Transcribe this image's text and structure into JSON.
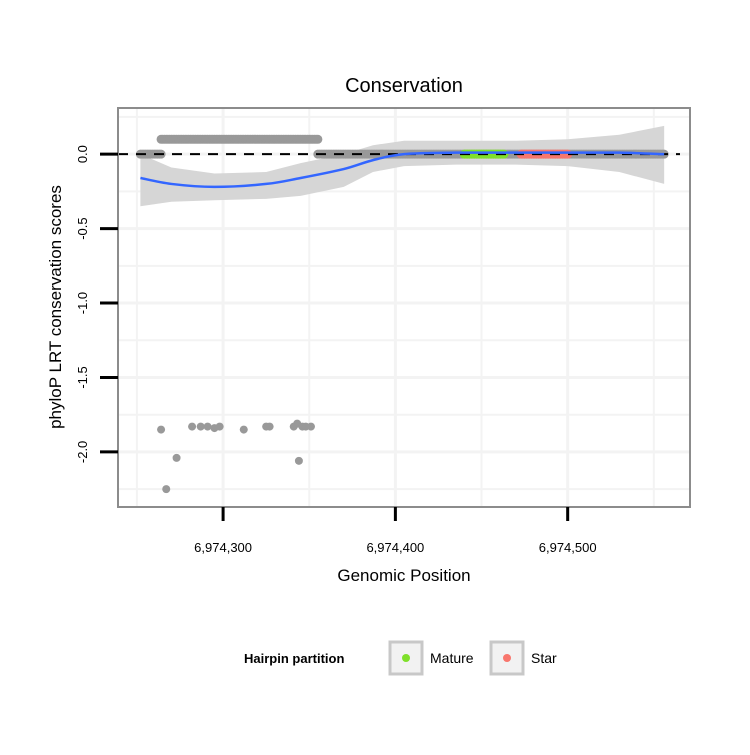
{
  "chart_data": {
    "type": "scatter",
    "title": "Conservation",
    "xlabel": "Genomic Position",
    "ylabel": "phyloP LRT conservation scores",
    "xlim": [
      6974239,
      6974571
    ],
    "ylim": [
      -2.37,
      0.31
    ],
    "x_ticks": [
      6974300,
      6974400,
      6974500
    ],
    "x_tick_labels": [
      "6,974,300",
      "6,974,400",
      "6,974,500"
    ],
    "y_ticks": [
      0.0,
      -0.5,
      -1.0,
      -1.5,
      -2.0
    ],
    "y_tick_labels": [
      "0.0",
      "-0.5",
      "-1.0",
      "-1.5",
      "-2.0"
    ],
    "grid": true,
    "reference_line": {
      "y": 0,
      "style": "dashed"
    },
    "point_runs": [
      {
        "from": 6974252,
        "to": 6974264,
        "step": 1,
        "y": 0.0,
        "group": "other"
      },
      {
        "from": 6974264,
        "to": 6974355,
        "step": 1,
        "y": 0.1,
        "group": "other"
      },
      {
        "from": 6974355,
        "to": 6974556,
        "step": 1,
        "y": 0.0,
        "group": "other"
      },
      {
        "from": 6974440,
        "to": 6974463,
        "step": 1,
        "y": 0.0,
        "group": "Mature"
      },
      {
        "from": 6974473,
        "to": 6974500,
        "step": 1,
        "y": 0.0,
        "group": "Star"
      }
    ],
    "points_low": [
      [
        6974264,
        -1.85
      ],
      [
        6974267,
        -2.25
      ],
      [
        6974273,
        -2.04
      ],
      [
        6974282,
        -1.83
      ],
      [
        6974287,
        -1.83
      ],
      [
        6974291,
        -1.83
      ],
      [
        6974295,
        -1.84
      ],
      [
        6974298,
        -1.83
      ],
      [
        6974312,
        -1.85
      ],
      [
        6974325,
        -1.83
      ],
      [
        6974327,
        -1.83
      ],
      [
        6974341,
        -1.83
      ],
      [
        6974343,
        -1.81
      ],
      [
        6974346,
        -1.83
      ],
      [
        6974348,
        -1.83
      ],
      [
        6974344,
        -2.06
      ],
      [
        6974351,
        -1.83
      ]
    ],
    "smooth": {
      "x": [
        6974252,
        6974270,
        6974295,
        6974325,
        6974345,
        6974370,
        6974387,
        6974405,
        6974435,
        6974470,
        6974500,
        6974530,
        6974556
      ],
      "fit": [
        -0.16,
        -0.2,
        -0.22,
        -0.2,
        -0.16,
        -0.1,
        -0.04,
        0.0,
        0.01,
        0.01,
        0.01,
        0.01,
        0.0
      ],
      "lower": [
        -0.35,
        -0.32,
        -0.31,
        -0.3,
        -0.28,
        -0.22,
        -0.12,
        -0.08,
        -0.07,
        -0.07,
        -0.08,
        -0.12,
        -0.2
      ],
      "upper": [
        0.0,
        -0.09,
        -0.13,
        -0.12,
        -0.06,
        0.0,
        0.06,
        0.09,
        0.09,
        0.09,
        0.1,
        0.13,
        0.19
      ]
    },
    "legend": {
      "title": "Hairpin partition",
      "position": "bottom",
      "entries": [
        {
          "label": "Mature",
          "color": "#7fe02a"
        },
        {
          "label": "Star",
          "color": "#f8766d"
        }
      ]
    },
    "colors": {
      "points": "#999999",
      "fit": "#3366ff",
      "band": "#d6d6d6",
      "grid": "#f3f3f3",
      "border": "#8c8c8c"
    }
  }
}
